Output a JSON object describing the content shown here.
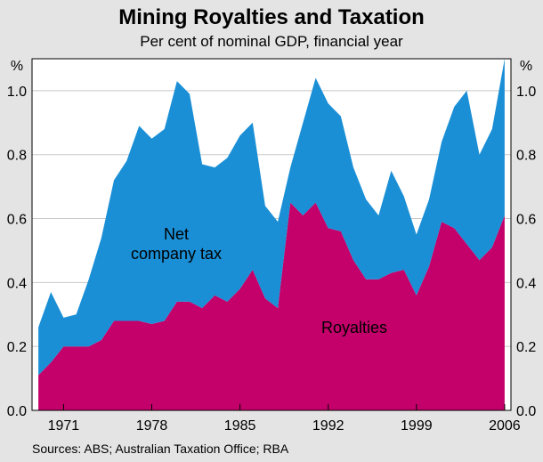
{
  "chart_data": {
    "type": "area",
    "title": "Mining Royalties and Taxation",
    "subtitle": "Per cent of nominal GDP, financial year",
    "ylabel_left": "%",
    "ylabel_right": "%",
    "ylim": [
      0,
      1.1
    ],
    "yticks": [
      "0.0",
      "0.2",
      "0.4",
      "0.6",
      "0.8",
      "1.0"
    ],
    "xlim": [
      1968.5,
      2006.5
    ],
    "xticks": [
      "1971",
      "1978",
      "1985",
      "1992",
      "1999",
      "2006"
    ],
    "x": [
      1969,
      1970,
      1971,
      1972,
      1973,
      1974,
      1975,
      1976,
      1977,
      1978,
      1979,
      1980,
      1981,
      1982,
      1983,
      1984,
      1985,
      1986,
      1987,
      1988,
      1989,
      1990,
      1991,
      1992,
      1993,
      1994,
      1995,
      1996,
      1997,
      1998,
      1999,
      2000,
      2001,
      2002,
      2003,
      2004,
      2005,
      2006
    ],
    "series": [
      {
        "name": "Royalties",
        "color": "#c4006a",
        "values": [
          0.11,
          0.15,
          0.2,
          0.2,
          0.2,
          0.22,
          0.28,
          0.28,
          0.28,
          0.27,
          0.28,
          0.34,
          0.34,
          0.32,
          0.36,
          0.34,
          0.38,
          0.44,
          0.35,
          0.32,
          0.65,
          0.61,
          0.65,
          0.57,
          0.56,
          0.47,
          0.41,
          0.41,
          0.43,
          0.44,
          0.36,
          0.45,
          0.59,
          0.57,
          0.52,
          0.47,
          0.51,
          0.61
        ]
      },
      {
        "name": "Net company tax",
        "color": "#1a8fd6",
        "values": [
          0.15,
          0.22,
          0.09,
          0.1,
          0.21,
          0.32,
          0.44,
          0.5,
          0.61,
          0.58,
          0.6,
          0.69,
          0.65,
          0.45,
          0.4,
          0.45,
          0.48,
          0.46,
          0.29,
          0.27,
          0.11,
          0.29,
          0.39,
          0.39,
          0.36,
          0.29,
          0.25,
          0.2,
          0.32,
          0.23,
          0.19,
          0.21,
          0.25,
          0.38,
          0.48,
          0.33,
          0.37,
          0.49
        ]
      }
    ],
    "annotations": {
      "tax_label_line1": "Net",
      "tax_label_line2": "company tax",
      "royalties_label": "Royalties"
    },
    "source": "Sources: ABS; Australian Taxation Office; RBA",
    "background_color": "#e4e4e4",
    "plot_background": "#ffffff"
  }
}
